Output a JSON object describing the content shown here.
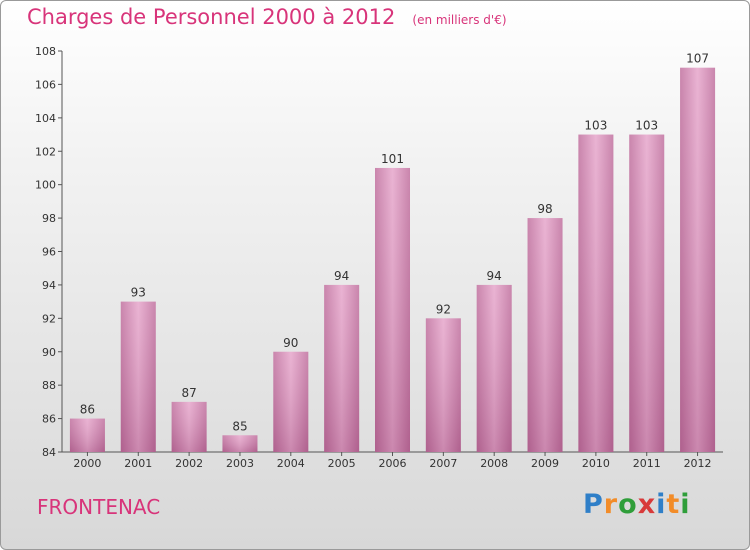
{
  "title": "Charges de Personnel 2000 à 2012",
  "subtitle": "(en milliers d'€)",
  "location": "FRONTENAC",
  "brand": {
    "text": "Proxiti",
    "letters": [
      "P",
      "r",
      "o",
      "x",
      "i",
      "t",
      "i"
    ],
    "colors": [
      "#2f7fc8",
      "#f28c28",
      "#2f9e3a",
      "#d83a3a",
      "#2f7fc8",
      "#f28c28",
      "#2f9e3a"
    ]
  },
  "colors": {
    "bar": "#d68ab4",
    "text_accent": "#d8347a"
  },
  "chart_data": {
    "type": "bar",
    "title": "Charges de Personnel 2000 à 2012",
    "subtitle": "(en milliers d'€)",
    "categories": [
      "2000",
      "2001",
      "2002",
      "2003",
      "2004",
      "2005",
      "2006",
      "2007",
      "2008",
      "2009",
      "2010",
      "2011",
      "2012"
    ],
    "values": [
      86,
      93,
      87,
      85,
      90,
      94,
      101,
      92,
      94,
      98,
      103,
      103,
      107
    ],
    "ylim": [
      84,
      108
    ],
    "yticks": [
      84,
      86,
      88,
      90,
      92,
      94,
      96,
      98,
      100,
      102,
      104,
      106,
      108
    ],
    "grid": false
  }
}
